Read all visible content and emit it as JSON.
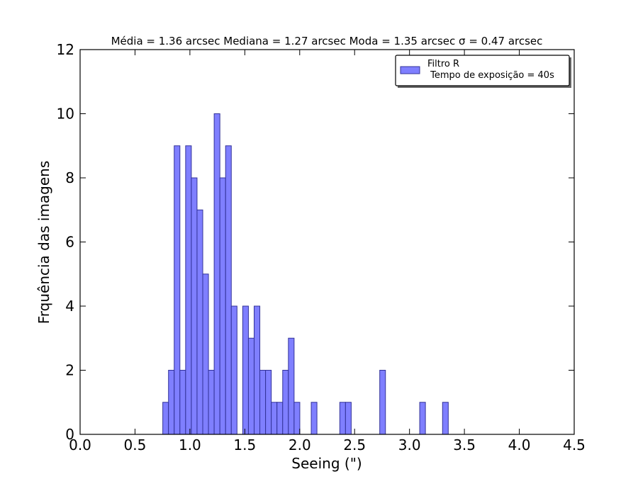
{
  "chart_data": {
    "type": "bar",
    "subtype": "histogram",
    "title": "Média = 1.36 arcsec  Mediana = 1.27 arcsec  Moda = 1.35 arcsec  σ = 0.47 arcsec",
    "xlabel": "Seeing (\")",
    "ylabel": "Frquência das imagens",
    "xlim": [
      0.0,
      4.5
    ],
    "ylim": [
      0,
      12
    ],
    "xticks": [
      "0.0",
      "0.5",
      "1.0",
      "1.5",
      "2.0",
      "2.5",
      "3.0",
      "3.5",
      "4.0",
      "4.5"
    ],
    "yticks": [
      "0",
      "2",
      "4",
      "6",
      "8",
      "10",
      "12"
    ],
    "bin_width": 0.052,
    "bins": [
      {
        "x": 0.753,
        "value": 1
      },
      {
        "x": 0.805,
        "value": 2
      },
      {
        "x": 0.857,
        "value": 9
      },
      {
        "x": 0.909,
        "value": 2
      },
      {
        "x": 0.961,
        "value": 9
      },
      {
        "x": 1.013,
        "value": 8
      },
      {
        "x": 1.065,
        "value": 7
      },
      {
        "x": 1.117,
        "value": 5
      },
      {
        "x": 1.169,
        "value": 2
      },
      {
        "x": 1.221,
        "value": 10
      },
      {
        "x": 1.273,
        "value": 8
      },
      {
        "x": 1.325,
        "value": 9
      },
      {
        "x": 1.377,
        "value": 4
      },
      {
        "x": 1.481,
        "value": 4
      },
      {
        "x": 1.533,
        "value": 3
      },
      {
        "x": 1.585,
        "value": 4
      },
      {
        "x": 1.637,
        "value": 2
      },
      {
        "x": 1.689,
        "value": 2
      },
      {
        "x": 1.741,
        "value": 1
      },
      {
        "x": 1.793,
        "value": 1
      },
      {
        "x": 1.845,
        "value": 2
      },
      {
        "x": 1.897,
        "value": 3
      },
      {
        "x": 1.949,
        "value": 1
      },
      {
        "x": 2.105,
        "value": 1
      },
      {
        "x": 2.365,
        "value": 1
      },
      {
        "x": 2.417,
        "value": 1
      },
      {
        "x": 2.729,
        "value": 2
      },
      {
        "x": 3.093,
        "value": 1
      },
      {
        "x": 3.301,
        "value": 1
      }
    ],
    "legend": {
      "position": "top-right",
      "entries": [
        {
          "line1": "Filtro R",
          "line2": " Tempo de exposição = 40s"
        }
      ]
    },
    "colors": {
      "bar_fill": "#7f7fff",
      "bar_edge": "#333399"
    },
    "grid": false
  }
}
